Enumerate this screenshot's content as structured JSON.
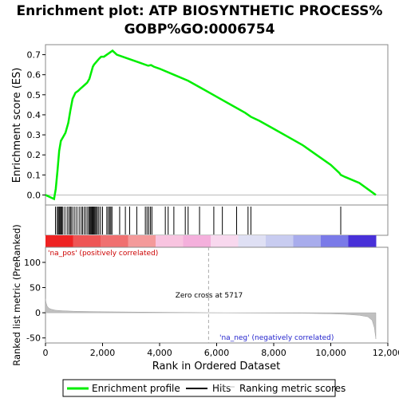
{
  "chart_data": [
    {
      "type": "line",
      "title_line1": "Enrichment plot: ATP BIOSYNTHETIC PROCESS%",
      "title_line2": "GOBP%GO:0006754",
      "ylabel": "Enrichment score (ES)",
      "xlim": [
        0,
        12000
      ],
      "ylim": [
        -0.05,
        0.75
      ],
      "yticks": [
        0.0,
        0.1,
        0.2,
        0.3,
        0.4,
        0.5,
        0.6,
        0.7
      ],
      "ytick_labels": [
        "0.0",
        "0.1",
        "0.2",
        "0.3",
        "0.4",
        "0.5",
        "0.6",
        "0.7"
      ],
      "series": [
        {
          "name": "Enrichment profile",
          "color": "#00ee00",
          "x": [
            0,
            300,
            360,
            420,
            480,
            540,
            620,
            700,
            800,
            870,
            950,
            1050,
            1150,
            1220,
            1300,
            1380,
            1460,
            1540,
            1580,
            1620,
            1660,
            1700,
            1760,
            1820,
            1880,
            1950,
            2050,
            2150,
            2250,
            2350,
            2500,
            2700,
            2900,
            3100,
            3300,
            3500,
            3600,
            3700,
            3800,
            4000,
            4500,
            5000,
            5500,
            6000,
            6500,
            7000,
            7200,
            7500,
            8000,
            8500,
            9000,
            9500,
            10000,
            10300,
            10350,
            10500,
            11000,
            11580
          ],
          "y": [
            0.0,
            -0.02,
            0.03,
            0.12,
            0.22,
            0.27,
            0.29,
            0.31,
            0.36,
            0.42,
            0.48,
            0.51,
            0.52,
            0.53,
            0.54,
            0.55,
            0.56,
            0.58,
            0.6,
            0.62,
            0.64,
            0.65,
            0.66,
            0.67,
            0.68,
            0.69,
            0.69,
            0.7,
            0.71,
            0.72,
            0.7,
            0.69,
            0.68,
            0.67,
            0.66,
            0.65,
            0.645,
            0.648,
            0.64,
            0.63,
            0.6,
            0.57,
            0.53,
            0.49,
            0.45,
            0.41,
            0.39,
            0.37,
            0.33,
            0.29,
            0.25,
            0.2,
            0.15,
            0.11,
            0.1,
            0.09,
            0.06,
            0.0
          ]
        }
      ]
    },
    {
      "type": "hits",
      "series_name": "Hits",
      "positions": [
        350,
        410,
        450,
        480,
        510,
        540,
        570,
        610,
        680,
        760,
        820,
        870,
        900,
        960,
        1030,
        1100,
        1180,
        1250,
        1300,
        1360,
        1420,
        1480,
        1530,
        1560,
        1590,
        1620,
        1650,
        1680,
        1710,
        1740,
        1780,
        1820,
        1870,
        1930,
        2000,
        2150,
        2200,
        2250,
        2290,
        2330,
        2600,
        2800,
        2950,
        3200,
        3500,
        3560,
        3620,
        3680,
        3730,
        4200,
        4300,
        4500,
        4900,
        5000,
        5400,
        5900,
        6200,
        6700,
        7100,
        7200,
        10350
      ]
    },
    {
      "type": "area",
      "ylabel": "Ranked list metric (PreRanked)",
      "xlabel": "Rank in Ordered Dataset",
      "xlim": [
        0,
        12000
      ],
      "ylim": [
        -60,
        130
      ],
      "yticks": [
        -50,
        0,
        50,
        100
      ],
      "ytick_labels": [
        "-50",
        "0",
        "50",
        "100"
      ],
      "xticks": [
        0,
        2000,
        4000,
        6000,
        8000,
        10000,
        12000
      ],
      "xtick_labels": [
        "0",
        "2,000",
        "4,000",
        "6,000",
        "8,000",
        "10,000",
        "12,000"
      ],
      "zero_cross": 5717,
      "zero_cross_label": "Zero cross at 5717",
      "pos_label": "'na_pos' (positively correlated)",
      "neg_label": "'na_neg' (negatively correlated)",
      "x": [
        0,
        20,
        60,
        120,
        200,
        350,
        600,
        1000,
        2000,
        3000,
        4000,
        5000,
        5717,
        7000,
        9000,
        10000,
        10500,
        11000,
        11300,
        11450,
        11530,
        11580
      ],
      "y": [
        28,
        20,
        13,
        9,
        7,
        5,
        4,
        3,
        2,
        1.5,
        1,
        0.5,
        0,
        -0.5,
        -1,
        -2,
        -3,
        -5,
        -8,
        -15,
        -30,
        -52
      ],
      "band_colors": [
        "#ee2222",
        "#ee5555",
        "#f07070",
        "#f49a9a",
        "#f8c4e0",
        "#f4b0dc",
        "#f8d8ee",
        "#dfe0f4",
        "#c8ccf0",
        "#a8acec",
        "#7a7ae8",
        "#4830d8"
      ]
    }
  ],
  "legend": {
    "entries": [
      {
        "label": "Enrichment profile",
        "color": "#00ee00"
      },
      {
        "label": "Hits",
        "color": "#000000"
      },
      {
        "label": "Ranking metric scores",
        "color": "#c0c0c0"
      }
    ]
  }
}
